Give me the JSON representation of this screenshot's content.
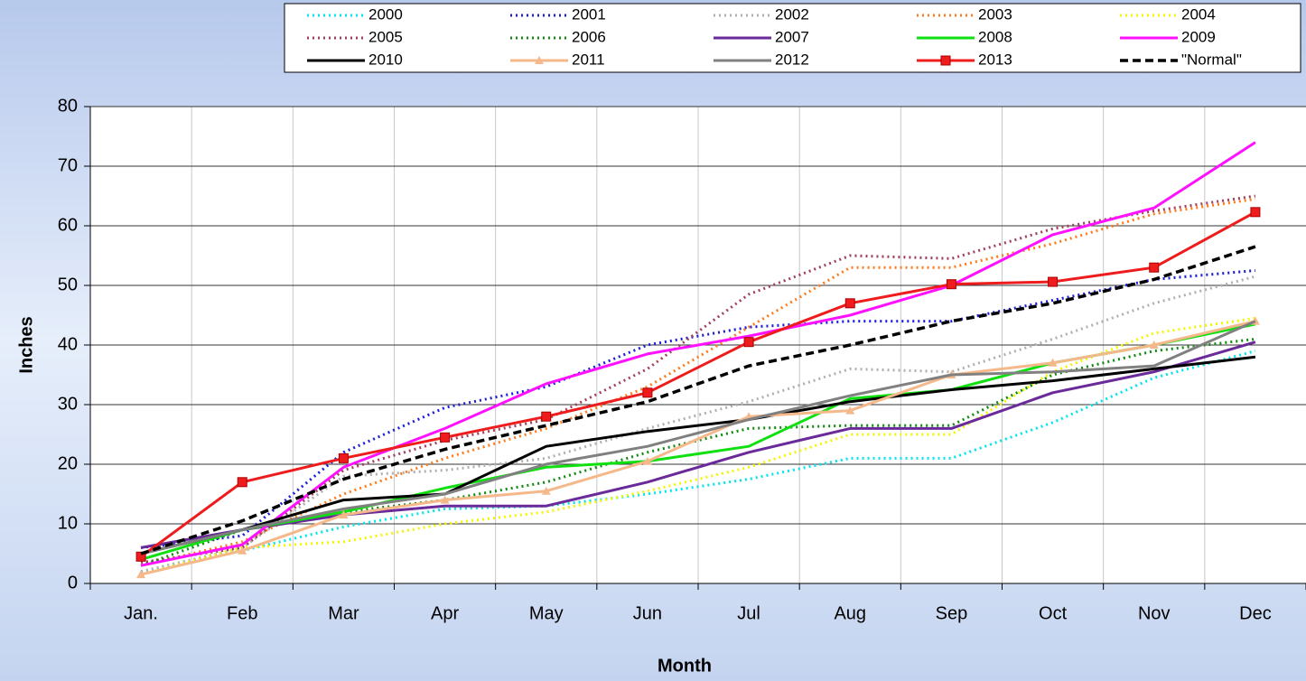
{
  "chart_data": {
    "type": "line",
    "x_label": "Month",
    "y_label": "Inches",
    "categories": [
      "Jan.",
      "Feb",
      "Mar",
      "Apr",
      "May",
      "Jun",
      "Jul",
      "Aug",
      "Sep",
      "Oct",
      "Nov",
      "Dec"
    ],
    "ylim": [
      0,
      80
    ],
    "yticks": [
      0,
      10,
      20,
      30,
      40,
      50,
      60,
      70,
      80
    ],
    "grid": true,
    "legend": "top",
    "series": [
      {
        "name": "2000",
        "color": "#00e5ee",
        "dash": "dotted",
        "values": [
          2,
          5.5,
          9.5,
          12.5,
          13,
          15,
          17.5,
          21,
          21,
          27,
          34.5,
          39
        ]
      },
      {
        "name": "2001",
        "color": "#1c1cdc",
        "dash": "dotted",
        "values": [
          6,
          8,
          22,
          29.5,
          33,
          40,
          43,
          44,
          44,
          47.5,
          51,
          52.5
        ]
      },
      {
        "name": "2002",
        "color": "#b0b0b0",
        "dash": "dotted",
        "values": [
          2,
          6,
          18,
          19,
          21,
          26,
          30.5,
          36,
          35.5,
          41,
          47,
          51.5
        ]
      },
      {
        "name": "2003",
        "color": "#ff7a1a",
        "dash": "dotted",
        "values": [
          3,
          7,
          15,
          21,
          26,
          33,
          43,
          53,
          53,
          57,
          62,
          64.5
        ]
      },
      {
        "name": "2004",
        "color": "#f5f500",
        "dash": "dotted",
        "values": [
          1.5,
          6,
          7,
          10,
          12,
          15.5,
          19.5,
          25,
          25,
          35.5,
          42,
          44.5
        ]
      },
      {
        "name": "2005",
        "color": "#a0405a",
        "dash": "dotted",
        "values": [
          3.5,
          6,
          19,
          24,
          27.5,
          36,
          48.5,
          55,
          54.5,
          59.5,
          62.5,
          65
        ]
      },
      {
        "name": "2006",
        "color": "#108a10",
        "dash": "dotted",
        "values": [
          3,
          9,
          12,
          14,
          17,
          22,
          26,
          26.5,
          26.5,
          35,
          39,
          41
        ]
      },
      {
        "name": "2007",
        "color": "#6a2a9a",
        "dash": "solid",
        "values": [
          6,
          9,
          11.5,
          13,
          13,
          17,
          22,
          26,
          26,
          32,
          35.5,
          40.5
        ]
      },
      {
        "name": "2008",
        "color": "#10e010",
        "dash": "solid",
        "values": [
          4,
          9,
          12,
          16,
          19.5,
          20.5,
          23,
          31,
          32.5,
          37,
          40,
          43.5
        ]
      },
      {
        "name": "2009",
        "color": "#ff10ff",
        "dash": "solid",
        "values": [
          3,
          6.5,
          19.5,
          26,
          33.5,
          38.5,
          41.5,
          45,
          50,
          58.5,
          63,
          74
        ]
      },
      {
        "name": "2010",
        "color": "#000000",
        "dash": "solid",
        "values": [
          5,
          9,
          14,
          15,
          23,
          25.5,
          27.5,
          30.5,
          32.5,
          34,
          36,
          38
        ]
      },
      {
        "name": "2011",
        "color": "#f5b88a",
        "dash": "solid",
        "marker": "triangle",
        "values": [
          1.5,
          5.5,
          11.5,
          14,
          15.5,
          20.5,
          28,
          29,
          35,
          37,
          40,
          44
        ]
      },
      {
        "name": "2012",
        "color": "#808080",
        "dash": "solid",
        "values": [
          5,
          9,
          12.5,
          15,
          20,
          23,
          27.5,
          31.5,
          35,
          35.5,
          36.5,
          44
        ]
      },
      {
        "name": "2013",
        "color": "#ee1c1c",
        "dash": "solid",
        "marker": "square",
        "values": [
          4.5,
          17,
          21,
          24.5,
          28,
          32,
          40.5,
          47,
          50.2,
          50.6,
          53,
          62.3
        ]
      },
      {
        "name": "\"Normal\"",
        "color": "#000000",
        "dash": "dashed",
        "values": [
          5,
          10.5,
          17.5,
          22.5,
          26.5,
          30.5,
          36.5,
          40,
          44,
          47,
          51,
          56.5
        ]
      }
    ]
  }
}
